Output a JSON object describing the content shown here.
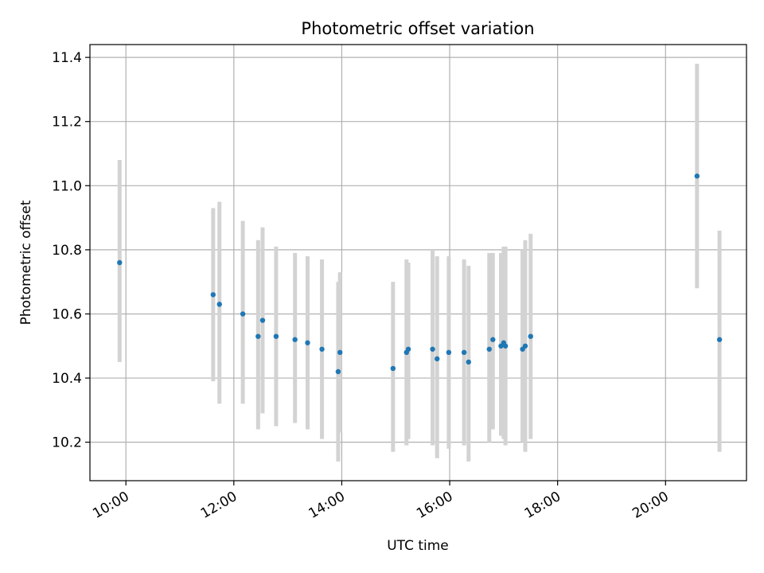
{
  "chart_data": {
    "type": "scatter",
    "title": "Photometric offset variation",
    "xlabel": "UTC time",
    "ylabel": "Photometric offset",
    "grid": true,
    "legend": "none",
    "xlim": [
      "09:20",
      "21:30"
    ],
    "ylim": [
      10.08,
      11.44
    ],
    "x_ticks": [
      "10:00",
      "12:00",
      "14:00",
      "16:00",
      "18:00",
      "20:00"
    ],
    "y_ticks": [
      "10.2",
      "10.4",
      "10.6",
      "10.8",
      "11.0",
      "11.2",
      "11.4"
    ],
    "colors": {
      "point": "#1f77b4",
      "errorbar": "#d3d3d3",
      "grid": "#b0b0b0"
    },
    "series": [
      {
        "x": [
          "09:53",
          "11:37",
          "11:44",
          "12:10",
          "12:27",
          "12:32",
          "12:47",
          "13:08",
          "13:22",
          "13:38",
          "13:56",
          "13:58",
          "14:57",
          "15:12",
          "15:14",
          "15:41",
          "15:46",
          "15:59",
          "16:16",
          "16:21",
          "16:44",
          "16:48",
          "16:57",
          "17:00",
          "17:02",
          "17:21",
          "17:24",
          "17:30"
        ],
        "y": [
          10.76,
          10.66,
          10.63,
          10.6,
          10.53,
          10.58,
          10.53,
          10.52,
          10.51,
          10.49,
          10.42,
          10.48,
          10.43,
          10.48,
          10.49,
          10.49,
          10.46,
          10.48,
          10.48,
          10.45,
          10.49,
          10.52,
          10.5,
          10.51,
          10.5,
          10.49,
          10.5,
          10.53
        ],
        "err_low": [
          10.45,
          10.39,
          10.32,
          10.32,
          10.24,
          10.29,
          10.25,
          10.26,
          10.24,
          10.21,
          10.14,
          10.23,
          10.17,
          10.19,
          10.21,
          10.19,
          10.15,
          10.18,
          10.19,
          10.14,
          10.2,
          10.24,
          10.22,
          10.21,
          10.19,
          10.2,
          10.17,
          10.21
        ],
        "err_high": [
          11.08,
          10.93,
          10.95,
          10.89,
          10.83,
          10.87,
          10.81,
          10.79,
          10.78,
          10.77,
          10.7,
          10.73,
          10.7,
          10.77,
          10.76,
          10.8,
          10.78,
          10.78,
          10.77,
          10.75,
          10.79,
          10.79,
          10.79,
          10.81,
          10.81,
          10.8,
          10.83,
          10.85
        ]
      },
      {
        "x": [
          "20:35",
          "21:00"
        ],
        "y": [
          11.03,
          10.52
        ],
        "err_low": [
          10.68,
          10.17
        ],
        "err_high": [
          11.38,
          10.86
        ]
      }
    ]
  }
}
